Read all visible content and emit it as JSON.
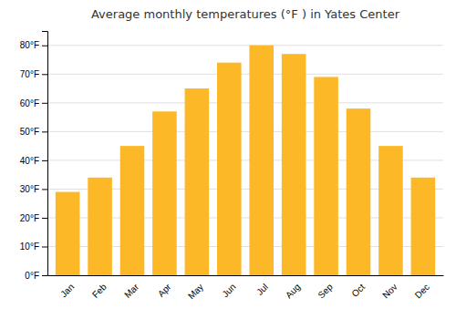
{
  "chart_data": {
    "type": "bar",
    "title": "Average monthly temperatures (°F ) in Yates Center",
    "categories": [
      "Jan",
      "Feb",
      "Mar",
      "Apr",
      "May",
      "Jun",
      "Jul",
      "Aug",
      "Sep",
      "Oct",
      "Nov",
      "Dec"
    ],
    "values": [
      29,
      34,
      45,
      57,
      65,
      74,
      80,
      77,
      69,
      58,
      45,
      34
    ],
    "color": "#FDB827",
    "ylim": [
      0,
      85
    ],
    "yticks": [
      {
        "value": 0,
        "label": "0°F"
      },
      {
        "value": 10,
        "label": "10°F"
      },
      {
        "value": 20,
        "label": "20°F"
      },
      {
        "value": 30,
        "label": "30°F"
      },
      {
        "value": 40,
        "label": "40°F"
      },
      {
        "value": 50,
        "label": "50°F"
      },
      {
        "value": 60,
        "label": "60°F"
      },
      {
        "value": 70,
        "label": "70°F"
      },
      {
        "value": 80,
        "label": "80°F"
      }
    ],
    "grid": true
  }
}
